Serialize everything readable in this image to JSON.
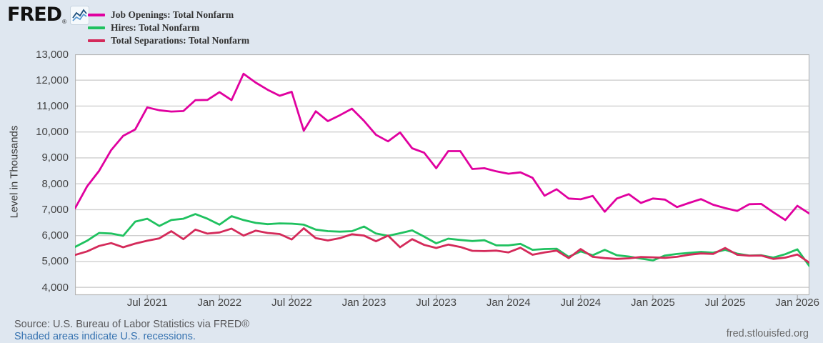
{
  "header": {
    "logo_text": "FRED",
    "logo_registered": "®",
    "legend": [
      {
        "label": "Job Openings: Total Nonfarm",
        "color": "#e0009f"
      },
      {
        "label": "Hires: Total Nonfarm",
        "color": "#1fc15f"
      },
      {
        "label": "Total Separations: Total Nonfarm",
        "color": "#d42a5a"
      }
    ]
  },
  "footer": {
    "source_line": "Source: U.S. Bureau of Labor Statistics via FRED®",
    "recession_note": "Shaded areas indicate U.S. recessions.",
    "site_url": "fred.stlouisfed.org"
  },
  "colors": {
    "page_background": "#dfe7f0",
    "plot_background": "#ffffff",
    "gridline": "#cfcfcf",
    "plot_frame": "#b5b5b5",
    "tick_mark": "#9a9a9a"
  },
  "chart_data": {
    "type": "line",
    "title": "",
    "xlabel": "",
    "ylabel": "Level in Thousands",
    "ylim": [
      3700,
      13000
    ],
    "grid": "horizontal-only",
    "legend_position": "top-left",
    "x_frequency": "monthly",
    "x_start": "Jan 2021",
    "x_end": "Feb 2026",
    "x_tick_labels": [
      "Jul 2021",
      "Jan 2022",
      "Jul 2022",
      "Jan 2023",
      "Jul 2023",
      "Jan 2024",
      "Jul 2024",
      "Jan 2025",
      "Jul 2025",
      "Jan 2026"
    ],
    "x_tick_month_indices": [
      6,
      12,
      18,
      24,
      30,
      36,
      42,
      48,
      54,
      60
    ],
    "y_tick_labels": [
      "4,000",
      "5,000",
      "6,000",
      "7,000",
      "8,000",
      "9,000",
      "10,000",
      "11,000",
      "12,000",
      "13,000"
    ],
    "y_tick_values": [
      4000,
      5000,
      6000,
      7000,
      8000,
      9000,
      10000,
      11000,
      12000,
      13000
    ],
    "series": [
      {
        "name": "Job Openings: Total Nonfarm",
        "color": "#e0009f",
        "values": [
          7050,
          7900,
          8500,
          9300,
          9850,
          10100,
          10950,
          10840,
          10790,
          10810,
          11230,
          11240,
          11540,
          11230,
          12250,
          11910,
          11630,
          11400,
          11550,
          10050,
          10800,
          10420,
          10650,
          10900,
          10430,
          9890,
          9640,
          9980,
          9370,
          9200,
          8600,
          9260,
          9260,
          8570,
          8600,
          8480,
          8390,
          8440,
          8230,
          7540,
          7790,
          7430,
          7400,
          7530,
          6920,
          7430,
          7600,
          7260,
          7430,
          7390,
          7100,
          7260,
          7410,
          7190,
          7060,
          6950,
          7210,
          7220,
          6900,
          6600,
          7150,
          6850
        ]
      },
      {
        "name": "Hires: Total Nonfarm",
        "color": "#1fc15f",
        "values": [
          5560,
          5800,
          6100,
          6080,
          5990,
          6540,
          6650,
          6370,
          6600,
          6650,
          6830,
          6650,
          6420,
          6750,
          6600,
          6490,
          6440,
          6470,
          6460,
          6420,
          6230,
          6170,
          6150,
          6170,
          6350,
          6080,
          5990,
          6090,
          6200,
          5960,
          5700,
          5880,
          5830,
          5790,
          5820,
          5620,
          5620,
          5680,
          5450,
          5480,
          5490,
          5180,
          5390,
          5240,
          5450,
          5240,
          5190,
          5110,
          5040,
          5230,
          5290,
          5330,
          5370,
          5340,
          5450,
          5300,
          5230,
          5240,
          5150,
          5280,
          5470,
          4820
        ]
      },
      {
        "name": "Total Separations: Total Nonfarm",
        "color": "#d42a5a",
        "values": [
          5250,
          5390,
          5600,
          5710,
          5550,
          5690,
          5800,
          5890,
          6170,
          5860,
          6230,
          6075,
          6120,
          6270,
          6000,
          6190,
          6100,
          6060,
          5850,
          6280,
          5900,
          5810,
          5900,
          6050,
          6000,
          5780,
          6000,
          5550,
          5860,
          5640,
          5520,
          5650,
          5560,
          5410,
          5400,
          5420,
          5350,
          5530,
          5260,
          5350,
          5420,
          5130,
          5480,
          5180,
          5130,
          5100,
          5120,
          5170,
          5160,
          5140,
          5180,
          5260,
          5310,
          5290,
          5520,
          5260,
          5220,
          5230,
          5100,
          5150,
          5270,
          4950
        ]
      }
    ]
  }
}
